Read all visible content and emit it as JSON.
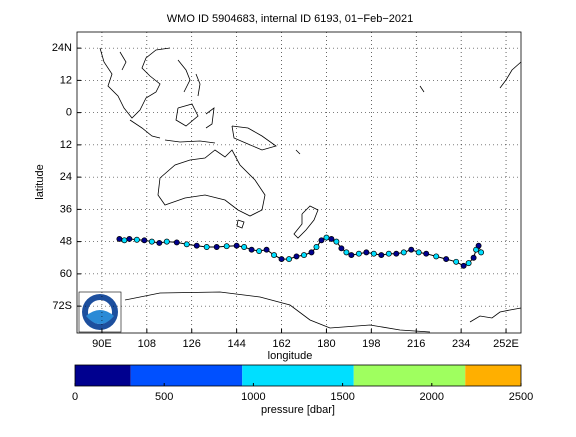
{
  "chart_data": {
    "type": "map-track",
    "title": "WMO ID 5904683, internal ID 6193, 01−Feb−2021",
    "x_label": "longitude",
    "y_label": "latitude",
    "xlim": [
      80,
      258
    ],
    "ylim": [
      -82,
      30
    ],
    "xticks": [
      {
        "value": 90,
        "label": "90E"
      },
      108,
      126,
      144,
      162,
      180,
      198,
      216,
      234,
      {
        "value": 252,
        "label": "252E"
      }
    ],
    "yticks": [
      {
        "value": 24,
        "label": "24N"
      },
      12,
      0,
      {
        "value": -12,
        "label": "12"
      },
      {
        "value": -24,
        "label": "24"
      },
      {
        "value": -36,
        "label": "36"
      },
      {
        "value": -48,
        "label": "48"
      },
      {
        "value": -60,
        "label": "60"
      },
      {
        "value": -72,
        "label": "72S"
      }
    ],
    "grid": true,
    "track_color": "#000000",
    "x": [
      97,
      99,
      101,
      104,
      107,
      110,
      113,
      116,
      120,
      124,
      128,
      132,
      136,
      140,
      144,
      147,
      150,
      153,
      156,
      159,
      162,
      165,
      168,
      171,
      174,
      176,
      178,
      180,
      182,
      184,
      186,
      188,
      190,
      193,
      196,
      199,
      202,
      205,
      208,
      211,
      214,
      217,
      220,
      224,
      228,
      232,
      235,
      237,
      239,
      240,
      241,
      242
    ],
    "values": [
      -47,
      -47.5,
      -47,
      -47.3,
      -47.5,
      -48,
      -48.5,
      -48,
      -48.3,
      -49,
      -49.5,
      -50,
      -50,
      -49.7,
      -49.5,
      -50,
      -51,
      -51.5,
      -51,
      -53,
      -54.5,
      -54.5,
      -53.5,
      -53,
      -52,
      -50,
      -47.5,
      -46.5,
      -47,
      -48,
      -50.5,
      -52,
      -53,
      -52.5,
      -52,
      -52.5,
      -53,
      -52.5,
      -52.5,
      -52,
      -51,
      -52,
      -52.5,
      -53.5,
      -54.5,
      -55.5,
      -57,
      -56,
      -54,
      -51,
      -49.5,
      -52
    ],
    "pressure": [
      5,
      1000,
      5,
      1000,
      5,
      1000,
      5,
      1000,
      5,
      1000,
      5,
      1000,
      5,
      1000,
      5,
      1000,
      5,
      1000,
      5,
      1000,
      5,
      1000,
      5,
      1000,
      5,
      1000,
      5,
      1000,
      5,
      1000,
      5,
      1000,
      5,
      1000,
      5,
      1000,
      5,
      1000,
      5,
      1000,
      5,
      1000,
      5,
      1000,
      5,
      1000,
      5,
      1000,
      5,
      1000,
      5,
      1000
    ],
    "colorbar": {
      "label": "pressure [dbar]",
      "bounds": [
        0,
        312.5,
        937.5,
        1562.5,
        2187.5,
        2500
      ],
      "colors": [
        "#00008f",
        "#0050ff",
        "#00dfff",
        "#9fff5f",
        "#ffaf00"
      ],
      "ticks": [
        0,
        500,
        1000,
        1500,
        2000,
        2500
      ]
    }
  }
}
